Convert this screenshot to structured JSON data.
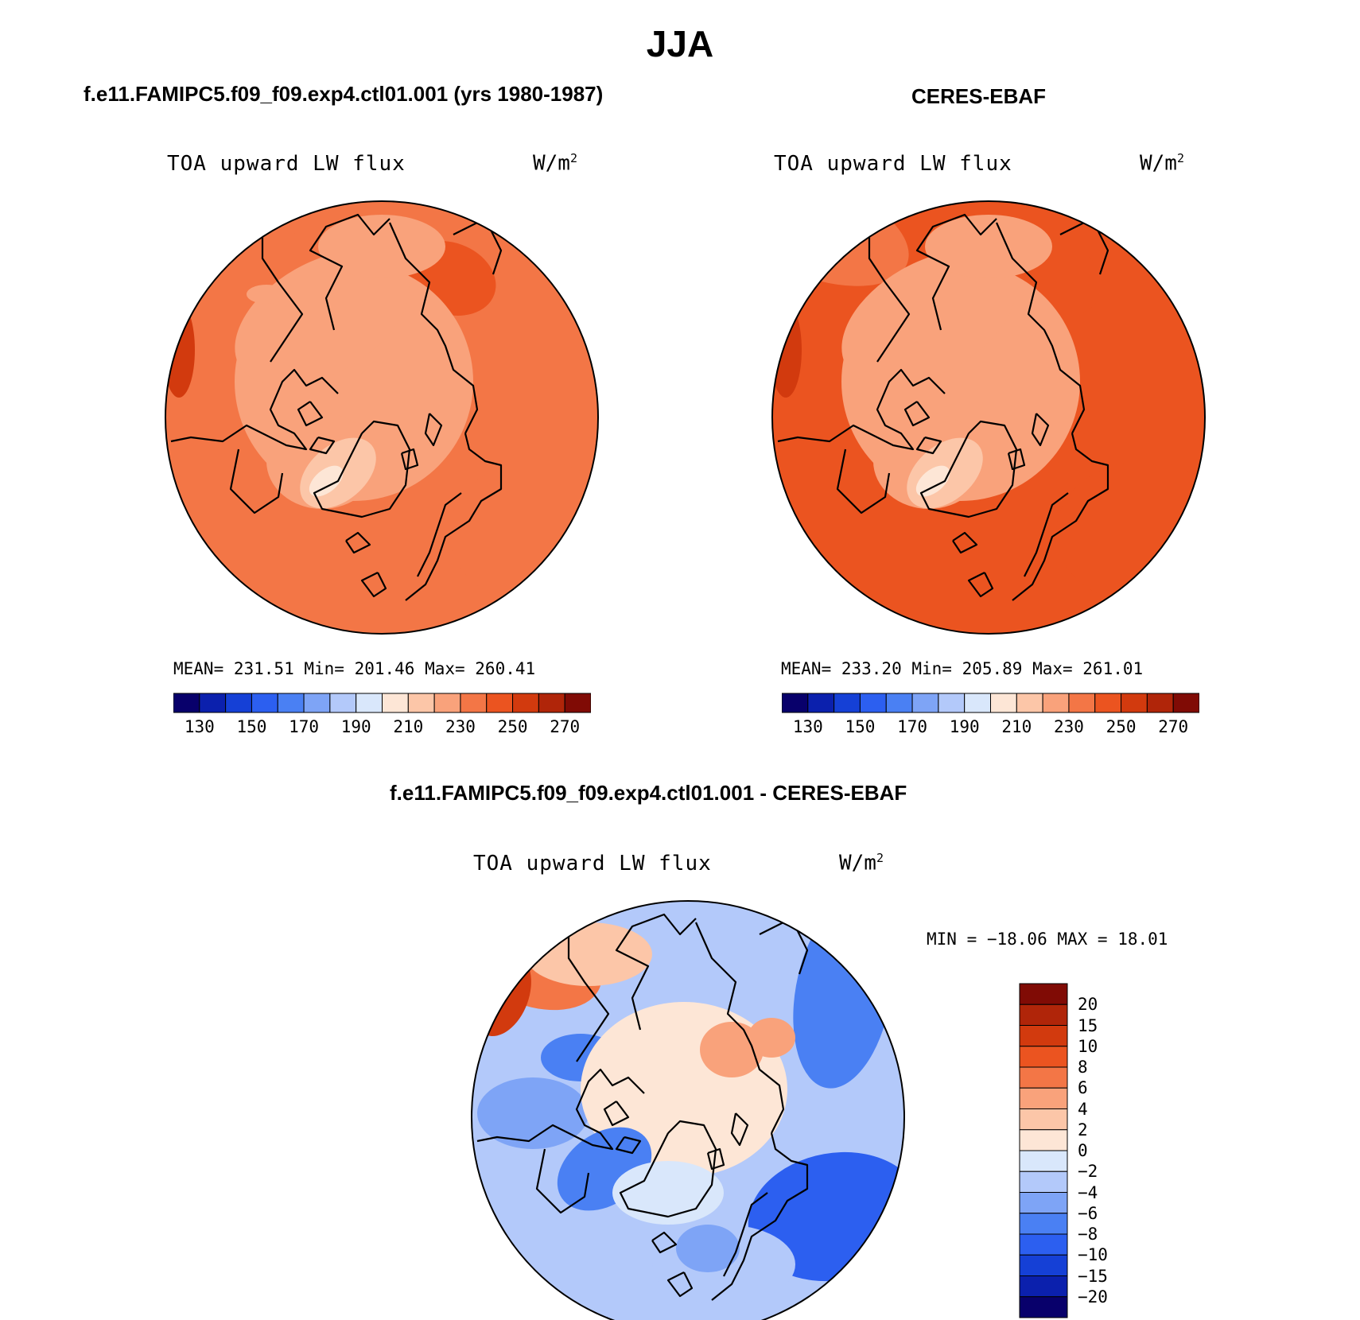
{
  "figure": {
    "title": "JJA"
  },
  "palettes": {
    "abs": [
      "#08006b",
      "#0b20ad",
      "#1540d6",
      "#2c5ff0",
      "#4a80f3",
      "#7ea4f6",
      "#b3c9fa",
      "#d9e7fb",
      "#fde6d6",
      "#fcc6a8",
      "#f9a27b",
      "#f37646",
      "#eb5420",
      "#d23a0e",
      "#b02509",
      "#800b05"
    ],
    "diff": [
      "#08006b",
      "#0b20ad",
      "#1540d6",
      "#2c5ff0",
      "#4a80f3",
      "#7ea4f6",
      "#b3c9fa",
      "#d9e7fb",
      "#fde6d6",
      "#fcc6a8",
      "#f9a27b",
      "#f37646",
      "#eb5420",
      "#d23a0e",
      "#b02509",
      "#800b05"
    ]
  },
  "panels": {
    "model": {
      "title": "f.e11.FAMIPC5.f09_f09.exp4.ctl01.001 (yrs 1980-1987)",
      "variable": "TOA upward LW flux",
      "units": "W/m",
      "units_exp": "2",
      "stats": "MEAN= 231.51   Min= 201.46   Max= 260.41"
    },
    "obs": {
      "title": "CERES-EBAF",
      "variable": "TOA upward LW flux",
      "units": "W/m",
      "units_exp": "2",
      "stats": "MEAN= 233.20   Min= 205.89   Max= 261.01"
    },
    "diff": {
      "title": "f.e11.FAMIPC5.f09_f09.exp4.ctl01.001 - CERES-EBAF",
      "variable": "TOA upward LW flux",
      "units": "W/m",
      "units_exp": "2",
      "stats": "MIN = −18.06 MAX =  18.01"
    }
  },
  "chart_data": [
    {
      "type": "heatmap",
      "projection": "north polar stereographic",
      "title": "f.e11.FAMIPC5.f09_f09.exp4.ctl01.001 (yrs 1980-1987)",
      "variable": "TOA upward LW flux",
      "units": "W/m2",
      "mean": 231.51,
      "min": 201.46,
      "max": 260.41,
      "colorbar_levels": [
        130,
        140,
        150,
        160,
        170,
        180,
        190,
        200,
        210,
        220,
        230,
        240,
        250,
        260,
        270
      ],
      "colorbar_tick_labels": [
        "130",
        "150",
        "170",
        "190",
        "210",
        "230",
        "250",
        "270"
      ]
    },
    {
      "type": "heatmap",
      "projection": "north polar stereographic",
      "title": "CERES-EBAF",
      "variable": "TOA upward LW flux",
      "units": "W/m2",
      "mean": 233.2,
      "min": 205.89,
      "max": 261.01,
      "colorbar_levels": [
        130,
        140,
        150,
        160,
        170,
        180,
        190,
        200,
        210,
        220,
        230,
        240,
        250,
        260,
        270
      ],
      "colorbar_tick_labels": [
        "130",
        "150",
        "170",
        "190",
        "210",
        "230",
        "250",
        "270"
      ]
    },
    {
      "type": "heatmap",
      "projection": "north polar stereographic",
      "title": "f.e11.FAMIPC5.f09_f09.exp4.ctl01.001 - CERES-EBAF",
      "variable": "TOA upward LW flux",
      "units": "W/m2",
      "min": -18.06,
      "max": 18.01,
      "colorbar_levels": [
        -20,
        -15,
        -10,
        -8,
        -6,
        -4,
        -2,
        0,
        2,
        4,
        6,
        8,
        10,
        15,
        20
      ],
      "colorbar_tick_labels": [
        "20",
        "15",
        "10",
        "8",
        "6",
        "4",
        "2",
        "0",
        "−2",
        "−4",
        "−6",
        "−8",
        "−10",
        "−15",
        "−20"
      ]
    }
  ]
}
